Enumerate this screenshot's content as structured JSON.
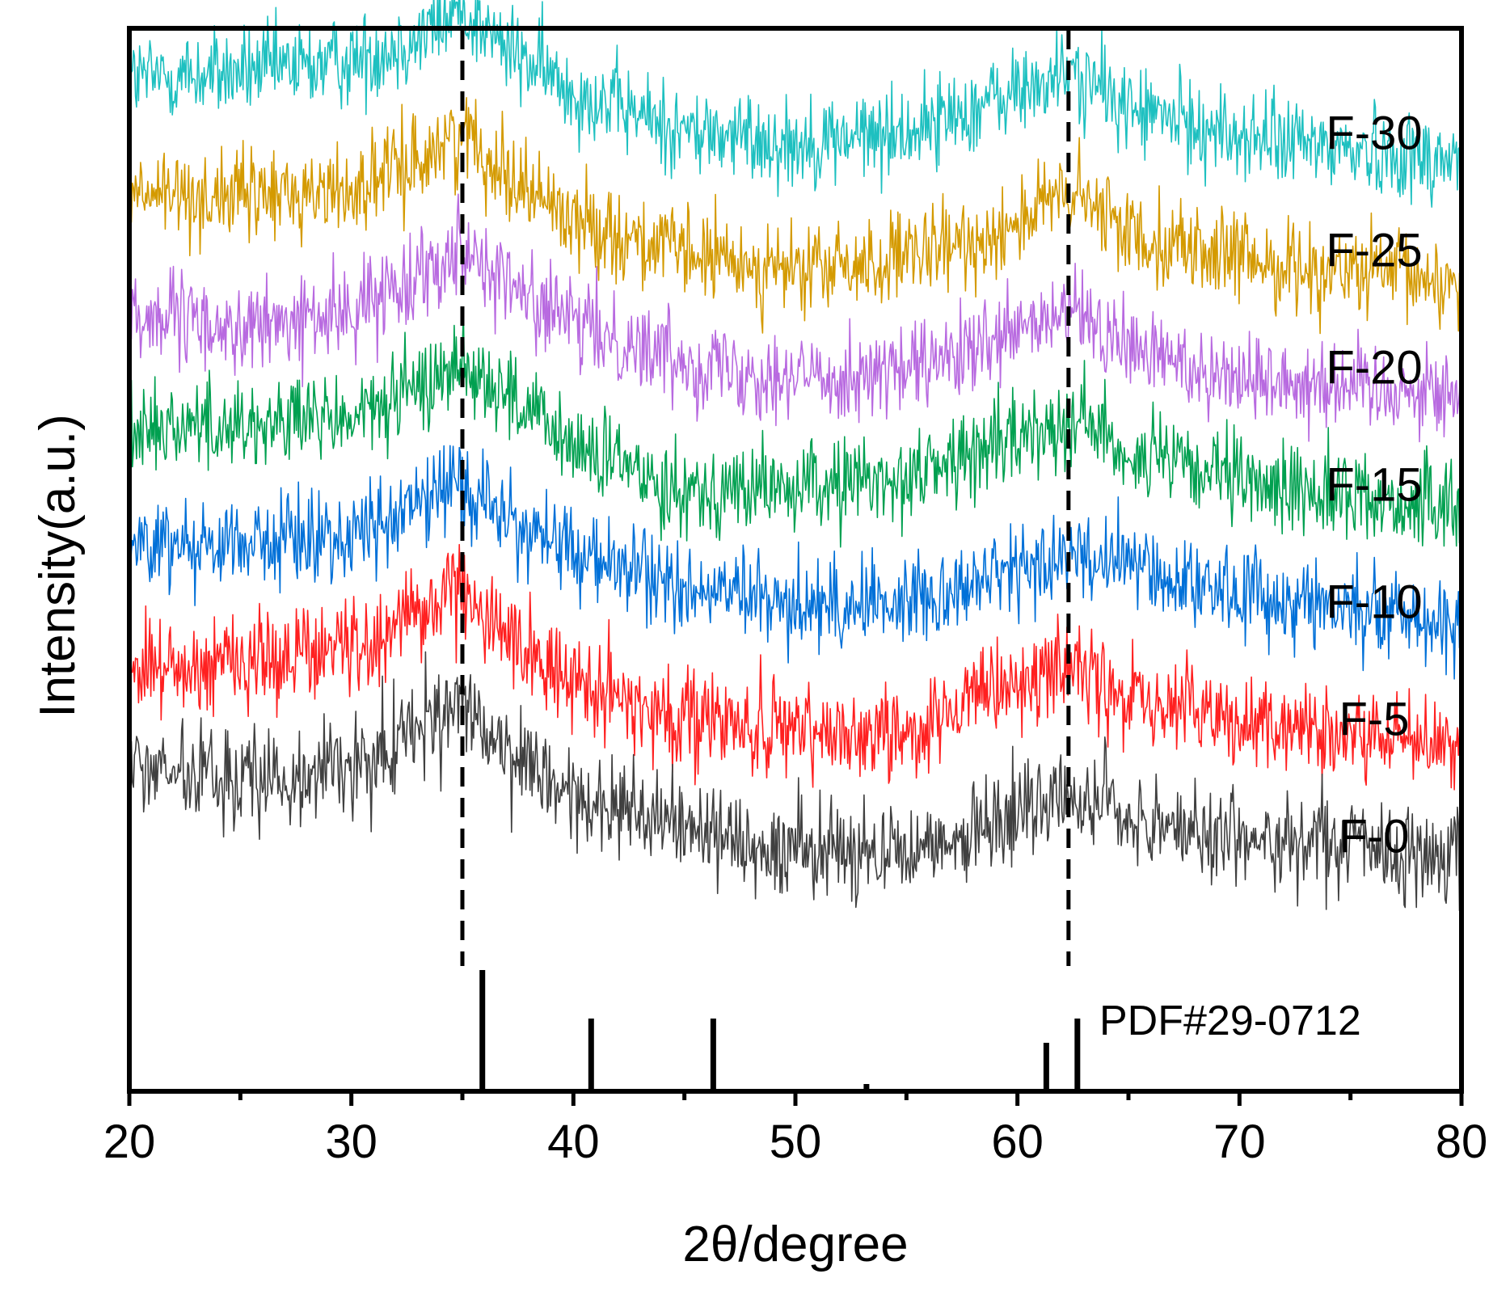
{
  "chart_data": {
    "type": "line",
    "title": "",
    "xlabel": "2θ/degree",
    "ylabel": "Intensity(a.u.)",
    "xlim": [
      20,
      80
    ],
    "xticks": [
      20,
      30,
      40,
      50,
      60,
      70,
      80
    ],
    "xtick_labels": [
      "20",
      "30",
      "40",
      "50",
      "60",
      "70",
      "80"
    ],
    "yticks": [],
    "grid": false,
    "legend": "inline labels at right",
    "dashed_reference_x": [
      35,
      62.3
    ],
    "series": [
      {
        "name": "F-30",
        "color": "#1ec0c0",
        "offset": 6.0,
        "noise": 0.55,
        "profile": [
          [
            20,
            0.95
          ],
          [
            25,
            1.0
          ],
          [
            30,
            1.1
          ],
          [
            33,
            1.3
          ],
          [
            35,
            1.55
          ],
          [
            37,
            1.2
          ],
          [
            40,
            0.85
          ],
          [
            45,
            0.5
          ],
          [
            50,
            0.4
          ],
          [
            55,
            0.5
          ],
          [
            58,
            0.7
          ],
          [
            61,
            0.9
          ],
          [
            62.5,
            1.0
          ],
          [
            65,
            0.7
          ],
          [
            70,
            0.45
          ],
          [
            75,
            0.35
          ],
          [
            80,
            0.25
          ]
        ]
      },
      {
        "name": "F-25",
        "color": "#d49a00",
        "offset": 5.0,
        "noise": 0.55,
        "profile": [
          [
            20,
            0.95
          ],
          [
            25,
            0.95
          ],
          [
            30,
            1.0
          ],
          [
            33,
            1.25
          ],
          [
            35,
            1.5
          ],
          [
            37,
            1.15
          ],
          [
            40,
            0.75
          ],
          [
            45,
            0.45
          ],
          [
            50,
            0.3
          ],
          [
            55,
            0.4
          ],
          [
            58,
            0.55
          ],
          [
            61,
            0.85
          ],
          [
            62.5,
            0.95
          ],
          [
            65,
            0.65
          ],
          [
            70,
            0.4
          ],
          [
            75,
            0.3
          ],
          [
            80,
            0.2
          ]
        ]
      },
      {
        "name": "F-20",
        "color": "#b86ae0",
        "offset": 4.0,
        "noise": 0.55,
        "profile": [
          [
            20,
            0.95
          ],
          [
            25,
            0.8
          ],
          [
            30,
            0.95
          ],
          [
            33,
            1.3
          ],
          [
            35,
            1.55
          ],
          [
            37,
            1.2
          ],
          [
            40,
            0.85
          ],
          [
            45,
            0.55
          ],
          [
            50,
            0.4
          ],
          [
            55,
            0.45
          ],
          [
            58,
            0.6
          ],
          [
            61,
            0.85
          ],
          [
            62.5,
            0.95
          ],
          [
            65,
            0.65
          ],
          [
            70,
            0.4
          ],
          [
            75,
            0.35
          ],
          [
            80,
            0.25
          ]
        ]
      },
      {
        "name": "F-15",
        "color": "#00a050",
        "offset": 3.0,
        "noise": 0.55,
        "profile": [
          [
            20,
            1.0
          ],
          [
            25,
            1.0
          ],
          [
            30,
            1.05
          ],
          [
            33,
            1.3
          ],
          [
            35,
            1.55
          ],
          [
            37,
            1.25
          ],
          [
            40,
            0.8
          ],
          [
            45,
            0.45
          ],
          [
            50,
            0.45
          ],
          [
            55,
            0.55
          ],
          [
            58,
            0.75
          ],
          [
            61,
            0.95
          ],
          [
            62.5,
            1.1
          ],
          [
            65,
            0.75
          ],
          [
            70,
            0.5
          ],
          [
            75,
            0.4
          ],
          [
            80,
            0.25
          ]
        ]
      },
      {
        "name": "F-10",
        "color": "#0070d8",
        "offset": 2.0,
        "noise": 0.55,
        "profile": [
          [
            20,
            1.0
          ],
          [
            25,
            1.0
          ],
          [
            30,
            1.05
          ],
          [
            33,
            1.3
          ],
          [
            34.5,
            1.55
          ],
          [
            37,
            1.2
          ],
          [
            40,
            0.9
          ],
          [
            45,
            0.6
          ],
          [
            50,
            0.45
          ],
          [
            55,
            0.5
          ],
          [
            58,
            0.65
          ],
          [
            61,
            0.8
          ],
          [
            62.5,
            0.9
          ],
          [
            65,
            0.8
          ],
          [
            70,
            0.55
          ],
          [
            75,
            0.45
          ],
          [
            80,
            0.3
          ]
        ]
      },
      {
        "name": "F-5",
        "color": "#ff2020",
        "offset": 1.0,
        "noise": 0.6,
        "profile": [
          [
            20,
            0.9
          ],
          [
            25,
            1.0
          ],
          [
            30,
            1.1
          ],
          [
            33,
            1.4
          ],
          [
            35,
            1.6
          ],
          [
            37,
            1.2
          ],
          [
            40,
            0.8
          ],
          [
            45,
            0.5
          ],
          [
            50,
            0.35
          ],
          [
            55,
            0.4
          ],
          [
            58,
            0.6
          ],
          [
            61,
            0.85
          ],
          [
            62.5,
            0.95
          ],
          [
            65,
            0.65
          ],
          [
            70,
            0.45
          ],
          [
            75,
            0.35
          ],
          [
            80,
            0.25
          ]
        ]
      },
      {
        "name": "F-0",
        "color": "#404040",
        "offset": 0.0,
        "noise": 0.6,
        "profile": [
          [
            20,
            1.1
          ],
          [
            25,
            0.95
          ],
          [
            30,
            1.1
          ],
          [
            33,
            1.4
          ],
          [
            35,
            1.6
          ],
          [
            37,
            1.15
          ],
          [
            40,
            0.8
          ],
          [
            45,
            0.6
          ],
          [
            50,
            0.35
          ],
          [
            55,
            0.4
          ],
          [
            58,
            0.5
          ],
          [
            61,
            0.75
          ],
          [
            62.5,
            0.85
          ],
          [
            65,
            0.65
          ],
          [
            70,
            0.45
          ],
          [
            75,
            0.4
          ],
          [
            80,
            0.3
          ]
        ]
      }
    ],
    "reference": {
      "name": "PDF#29-0712",
      "peaks": [
        {
          "x": 35.9,
          "intensity": 100
        },
        {
          "x": 40.8,
          "intensity": 60
        },
        {
          "x": 46.3,
          "intensity": 60
        },
        {
          "x": 53.2,
          "intensity": 6
        },
        {
          "x": 61.3,
          "intensity": 40
        },
        {
          "x": 62.7,
          "intensity": 60
        }
      ]
    }
  }
}
